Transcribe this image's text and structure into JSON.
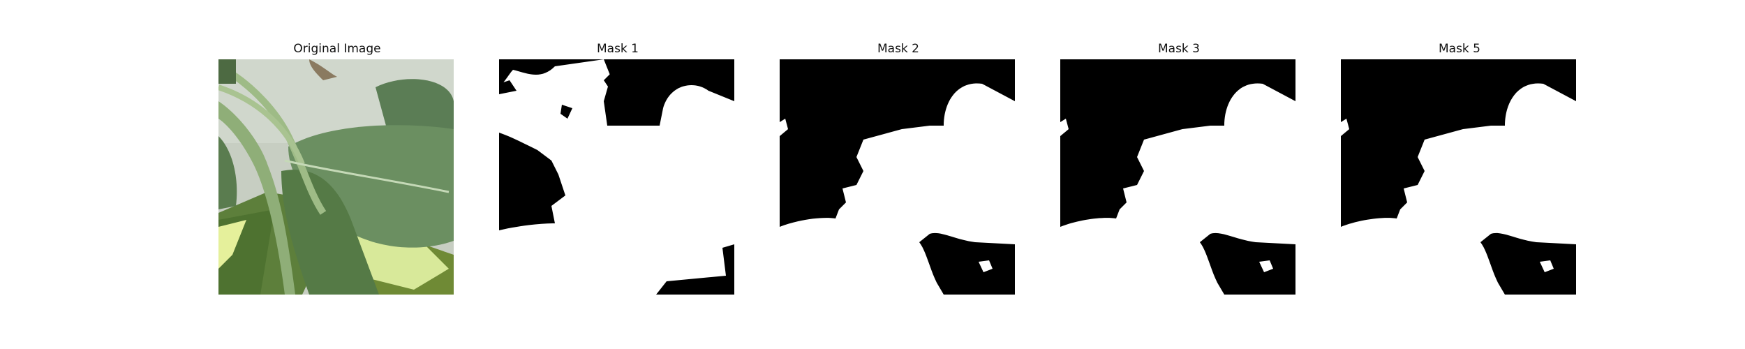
{
  "panels": [
    {
      "title": "Original Image"
    },
    {
      "title": "Mask 1"
    },
    {
      "title": "Mask 2"
    },
    {
      "title": "Mask 3"
    },
    {
      "title": "Mask 5"
    }
  ],
  "colors": {
    "background": "#ffffff",
    "mask_foreground": "#ffffff",
    "mask_background": "#000000",
    "leaf_green": "#6f9162",
    "light_background": "#c9d0c4",
    "yellow_green": "#cfe06e"
  }
}
